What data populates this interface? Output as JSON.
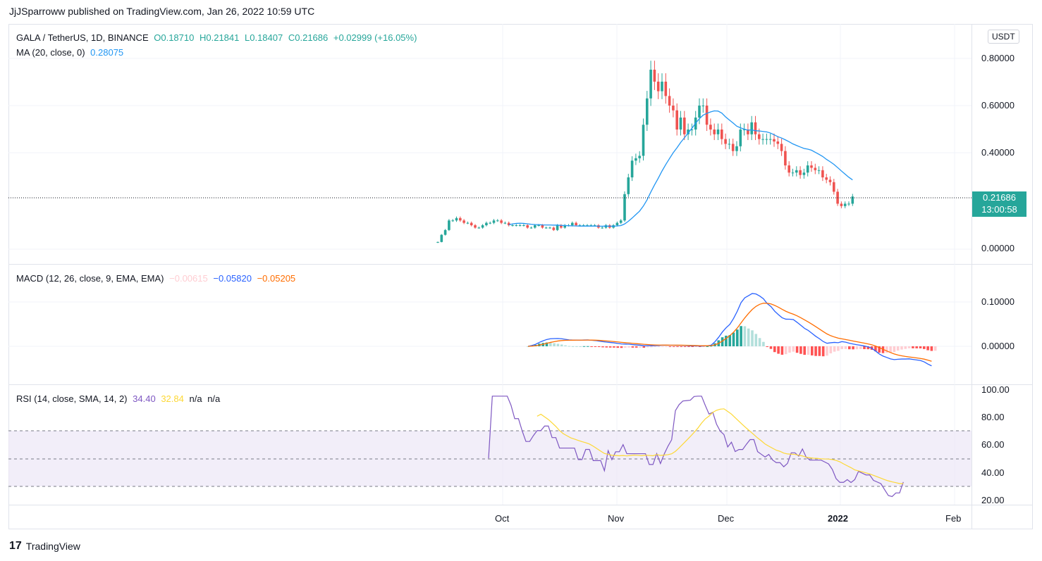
{
  "header": {
    "text": "JjJSparroww published on TradingView.com, Jan 26, 2022 10:59 UTC"
  },
  "main_pane": {
    "symbol": "GALA / TetherUS, 1D, BINANCE",
    "open": "O0.18710",
    "high": "H0.21841",
    "low": "L0.18407",
    "close": "C0.21686",
    "change": "+0.02999 (+16.05%)",
    "ma_label": "MA (20, close, 0)",
    "ma_value": "0.28075",
    "currency_badge": "USDT",
    "price_tag_value": "0.21686",
    "price_tag_countdown": "13:00:58",
    "y_ticks": [
      "0.80000",
      "0.60000",
      "0.40000",
      "0.00000"
    ]
  },
  "macd_pane": {
    "label": "MACD (12, 26, close, 9, EMA, EMA)",
    "hist_value": "−0.00615",
    "macd_value": "−0.05820",
    "signal_value": "−0.05205",
    "y_ticks": [
      "0.10000",
      "0.00000"
    ]
  },
  "rsi_pane": {
    "label": "RSI (14, close, SMA, 14, 2)",
    "rsi_value": "34.40",
    "sma_value": "32.84",
    "na1": "n/a",
    "na2": "n/a",
    "y_ticks": [
      "100.00",
      "80.00",
      "60.00",
      "40.00",
      "20.00"
    ]
  },
  "x_axis": {
    "ticks": [
      "Oct",
      "Nov",
      "Dec",
      "2022",
      "Feb"
    ]
  },
  "footer": {
    "brand": "TradingView"
  },
  "colors": {
    "up": "#26a69a",
    "down": "#ef5350",
    "ma": "#2196f3",
    "macd": "#2962ff",
    "signal": "#ff6d00",
    "rsi": "#7e57c2",
    "rsi_sma": "#fdd835",
    "rsi_band": "#ede7f6"
  },
  "chart_data": {
    "type": "candlestick",
    "y_range": [
      0,
      0.85
    ],
    "closes": [
      0.03,
      0.06,
      0.08,
      0.12,
      0.12,
      0.13,
      0.12,
      0.11,
      0.11,
      0.1,
      0.09,
      0.09,
      0.1,
      0.11,
      0.11,
      0.12,
      0.12,
      0.11,
      0.11,
      0.1,
      0.1,
      0.1,
      0.1,
      0.1,
      0.09,
      0.09,
      0.1,
      0.1,
      0.09,
      0.09,
      0.09,
      0.08,
      0.1,
      0.09,
      0.1,
      0.1,
      0.11,
      0.1,
      0.1,
      0.1,
      0.1,
      0.1,
      0.1,
      0.09,
      0.09,
      0.1,
      0.09,
      0.1,
      0.11,
      0.12,
      0.23,
      0.3,
      0.37,
      0.38,
      0.39,
      0.52,
      0.63,
      0.75,
      0.7,
      0.66,
      0.7,
      0.64,
      0.6,
      0.58,
      0.5,
      0.55,
      0.48,
      0.5,
      0.5,
      0.55,
      0.6,
      0.6,
      0.52,
      0.5,
      0.48,
      0.5,
      0.46,
      0.44,
      0.44,
      0.41,
      0.43,
      0.5,
      0.5,
      0.48,
      0.53,
      0.48,
      0.46,
      0.46,
      0.46,
      0.46,
      0.45,
      0.44,
      0.41,
      0.35,
      0.32,
      0.32,
      0.33,
      0.31,
      0.32,
      0.35,
      0.34,
      0.33,
      0.33,
      0.3,
      0.29,
      0.28,
      0.24,
      0.19,
      0.18,
      0.19,
      0.19,
      0.22
    ]
  }
}
